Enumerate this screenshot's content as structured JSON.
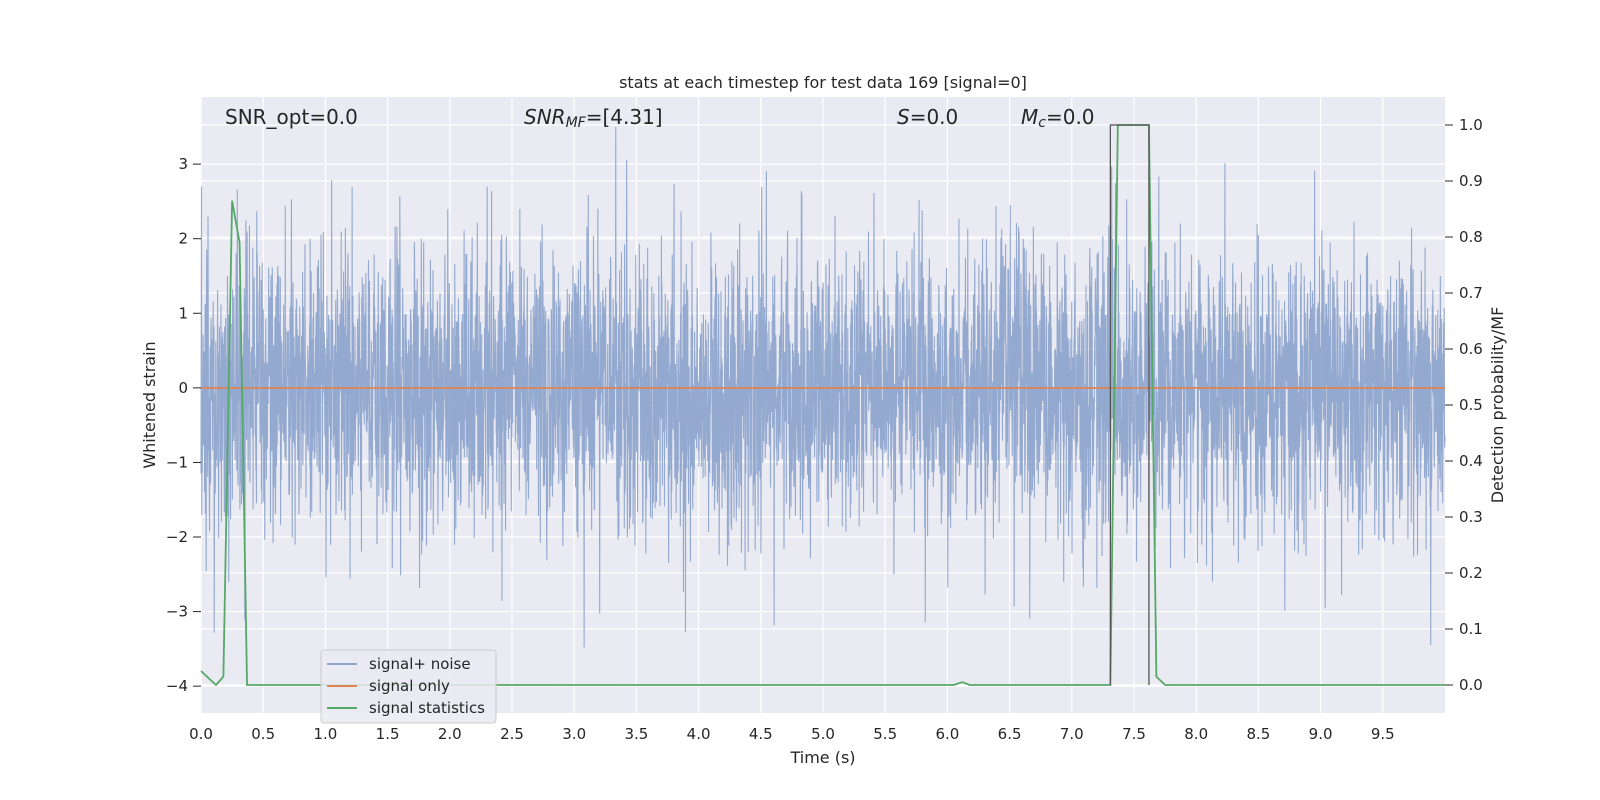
{
  "chart_data": {
    "type": "line",
    "title": "stats at each timestep for test data 169 [signal=0]",
    "xlabel": "Time (s)",
    "ylabel_left": "Whitened strain",
    "ylabel_right": "Detection probability/MF",
    "xlim": [
      0.0,
      10.0
    ],
    "ylim_left": [
      -4.36,
      3.9
    ],
    "ylim_right": [
      -0.05,
      1.05
    ],
    "x_ticks": [
      "0.0",
      "0.5",
      "1.0",
      "1.5",
      "2.0",
      "2.5",
      "3.0",
      "3.5",
      "4.0",
      "4.5",
      "5.0",
      "5.5",
      "6.0",
      "6.5",
      "7.0",
      "7.5",
      "8.0",
      "8.5",
      "9.0",
      "9.5"
    ],
    "y_ticks_left": [
      "3",
      "2",
      "1",
      "0",
      "−1",
      "−2",
      "−3",
      "−4"
    ],
    "y_ticks_right": [
      "1.0",
      "0.9",
      "0.8",
      "0.7",
      "0.6",
      "0.5",
      "0.4",
      "0.3",
      "0.2",
      "0.1",
      "0.0"
    ],
    "grid": true,
    "legend_position": "lower-left",
    "annotations": {
      "snr_opt": "SNR_opt=0.0",
      "snr_mf_main": "SNR",
      "snr_mf_sub": "MF",
      "snr_mf_value": "=[4.31]",
      "s_label": "S",
      "s_value": "=0.0",
      "mc_label": "M",
      "mc_sub": "c",
      "mc_value": "=0.0"
    },
    "series": [
      {
        "name": "signal+ noise",
        "axis": "left",
        "color": "#8fa5cc",
        "description_range": [
          -4.1,
          3.5
        ]
      },
      {
        "name": "signal only",
        "axis": "left",
        "color": "#dd8452",
        "x": [
          0.0,
          10.0
        ],
        "y": [
          0.0,
          0.0
        ]
      },
      {
        "name": "signal statistics",
        "axis": "right",
        "color": "#55a868",
        "x": [
          0.0,
          0.12,
          0.18,
          0.25,
          0.31,
          0.37,
          6.05,
          6.12,
          6.18,
          7.31,
          7.37,
          7.62,
          7.68,
          7.75,
          8.55,
          10.0
        ],
        "y": [
          0.025,
          0.0,
          0.015,
          0.865,
          0.79,
          0.0,
          0.0,
          0.005,
          0.0,
          0.0,
          1.0,
          1.0,
          0.015,
          0.0,
          0.0,
          0.0
        ]
      },
      {
        "name": "",
        "axis": "right",
        "color": "#555555",
        "x": [
          7.31,
          7.31,
          7.62,
          7.62
        ],
        "y": [
          0.0,
          1.0,
          1.0,
          0.0
        ]
      }
    ]
  }
}
